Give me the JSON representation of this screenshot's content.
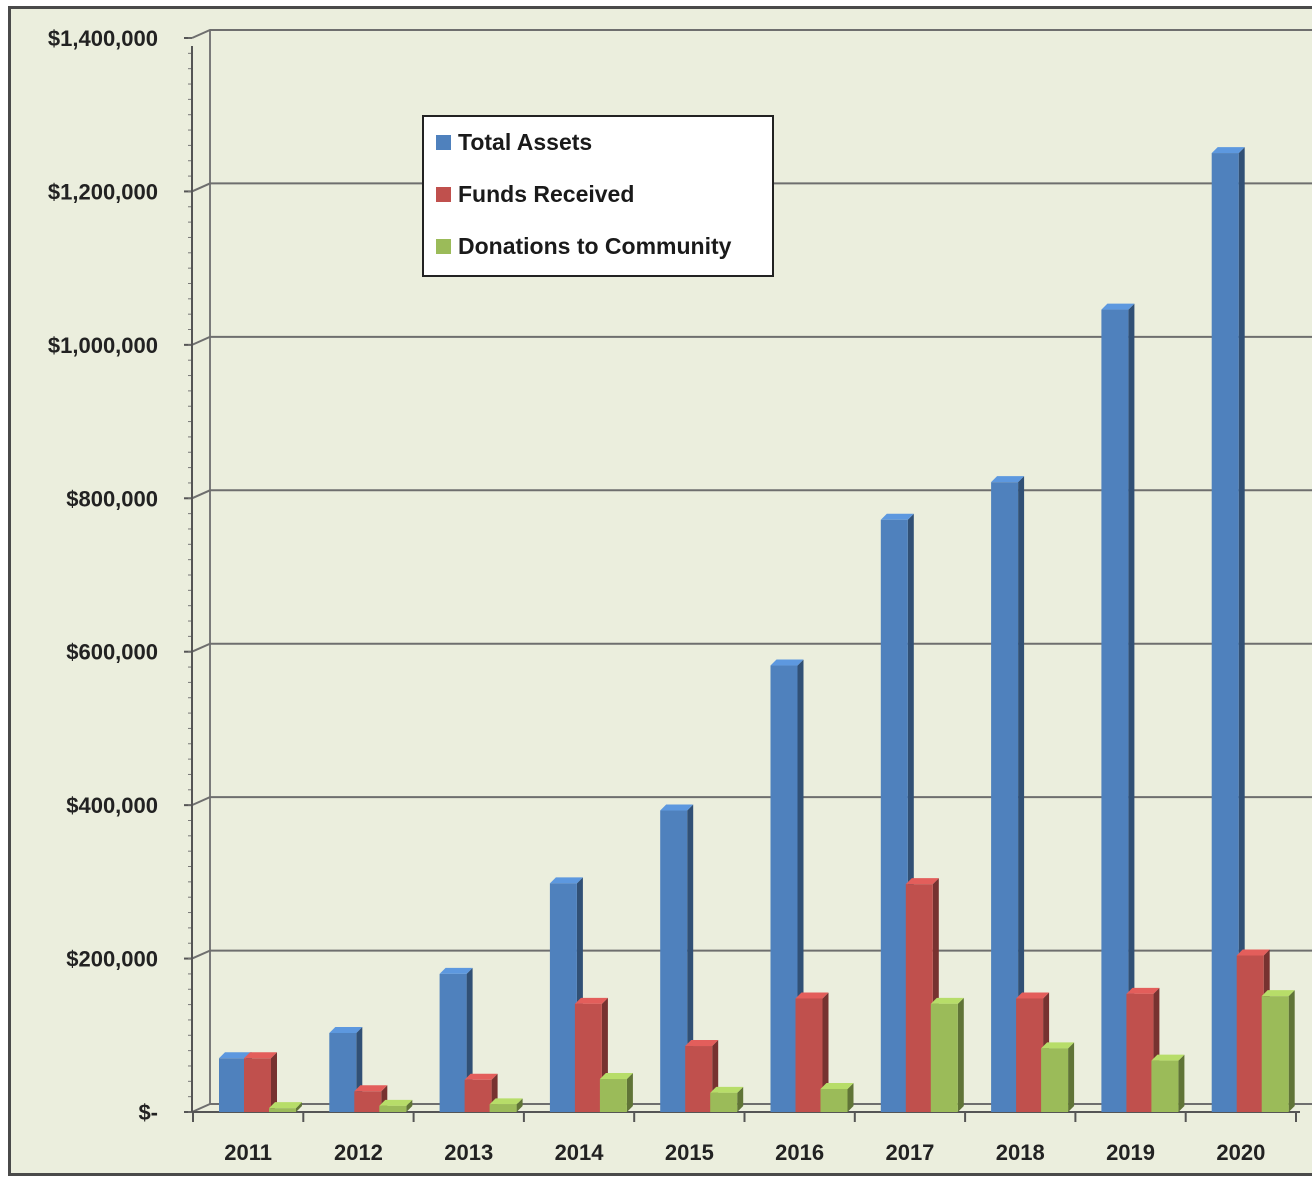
{
  "chart_data": {
    "type": "bar",
    "categories": [
      "2011",
      "2012",
      "2013",
      "2014",
      "2015",
      "2016",
      "2017",
      "2018",
      "2019",
      "2020"
    ],
    "series": [
      {
        "name": "Total Assets",
        "color": "#4f81bd",
        "values": [
          70000,
          103000,
          180000,
          298000,
          393000,
          582000,
          772000,
          821000,
          1046000,
          1250000
        ]
      },
      {
        "name": "Funds Received",
        "color": "#c0504d",
        "values": [
          70000,
          27000,
          42000,
          141000,
          86000,
          148000,
          297000,
          148000,
          154000,
          204000
        ]
      },
      {
        "name": "Donations to Community",
        "color": "#9bbb59",
        "values": [
          5000,
          8000,
          10000,
          43000,
          25000,
          30000,
          141000,
          83000,
          67000,
          151000
        ]
      }
    ],
    "yticks": [
      "$-",
      "$200,000",
      "$400,000",
      "$600,000",
      "$800,000",
      "$1,000,000",
      "$1,200,000",
      "$1,400,000"
    ],
    "ylim": [
      0,
      1400000
    ],
    "grid": true,
    "legend_position": "top-left",
    "title": "",
    "xlabel": "",
    "ylabel": ""
  }
}
